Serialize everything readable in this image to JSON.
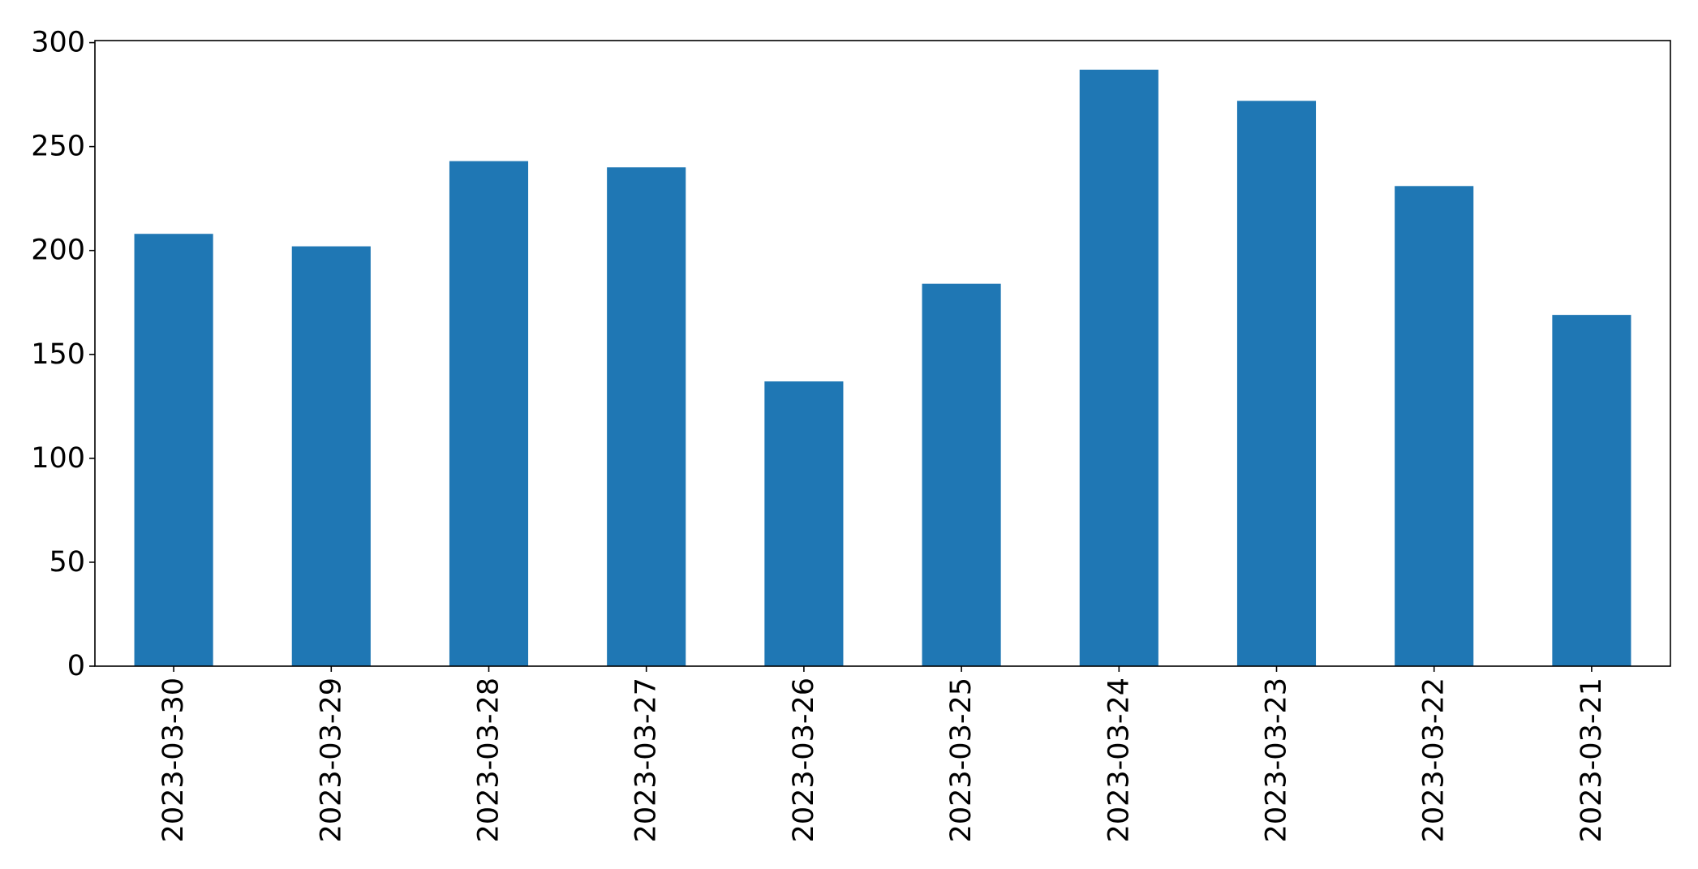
{
  "chart_data": {
    "type": "bar",
    "categories": [
      "2023-03-30",
      "2023-03-29",
      "2023-03-28",
      "2023-03-27",
      "2023-03-26",
      "2023-03-25",
      "2023-03-24",
      "2023-03-23",
      "2023-03-22",
      "2023-03-21"
    ],
    "values": [
      208,
      202,
      243,
      240,
      137,
      184,
      287,
      272,
      231,
      169
    ],
    "title": "",
    "xlabel": "",
    "ylabel": "",
    "ylim": [
      0,
      301
    ],
    "yticks": [
      0,
      50,
      100,
      150,
      200,
      250,
      300
    ],
    "grid": false,
    "legend": "none",
    "bar_color": "#1f77b4"
  }
}
